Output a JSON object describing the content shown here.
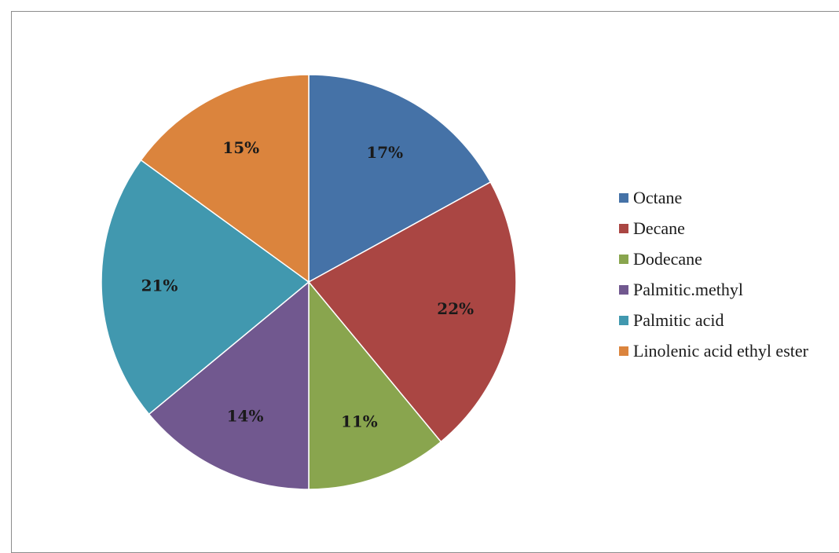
{
  "chart_data": {
    "type": "pie",
    "title": "",
    "start": "top, clockwise",
    "slices": [
      {
        "label": "Octane",
        "value": 17,
        "value_label": "17%",
        "color": "#4572A7"
      },
      {
        "label": "Decane",
        "value": 22,
        "value_label": "22%",
        "color": "#AA4643"
      },
      {
        "label": "Dodecane",
        "value": 11,
        "value_label": "11%",
        "color": "#89A54E"
      },
      {
        "label": "Palmitic.methyl",
        "value": 14,
        "value_label": "14%",
        "color": "#71588F"
      },
      {
        "label": "Palmitic acid",
        "value": 21,
        "value_label": "21%",
        "color": "#4198AF"
      },
      {
        "label": "Linolenic acid ethyl ester",
        "value": 15,
        "value_label": "15%",
        "color": "#DB843D"
      }
    ],
    "legend_position": "right"
  }
}
